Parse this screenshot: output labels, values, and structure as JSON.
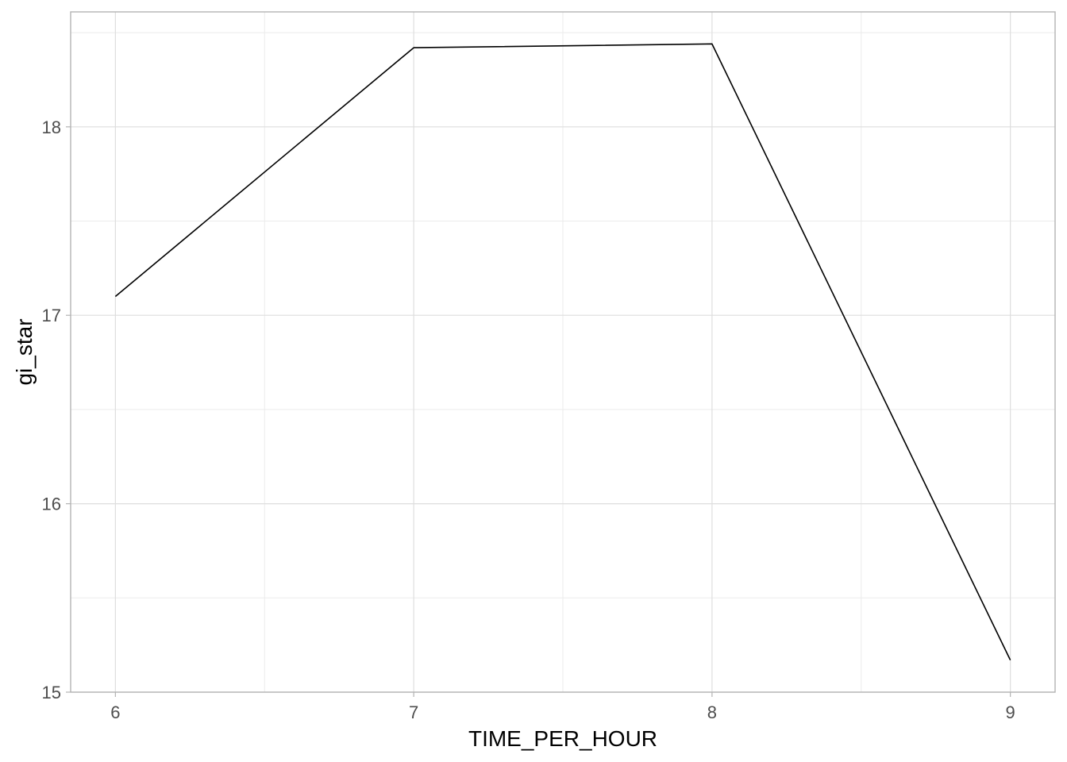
{
  "chart_data": {
    "type": "line",
    "title": "",
    "xlabel": "TIME_PER_HOUR",
    "ylabel": "gi_star",
    "x": [
      6,
      7,
      8,
      9
    ],
    "series": [
      {
        "values": [
          17.1,
          18.42,
          18.44,
          15.17
        ],
        "color": "#000000"
      }
    ],
    "xlim": [
      5.85,
      9.15
    ],
    "ylim": [
      15.0,
      18.61
    ],
    "x_ticks": [
      6,
      7,
      8,
      9
    ],
    "x_tick_labels": [
      "6",
      "7",
      "8",
      "9"
    ],
    "x_minor_ticks": [
      6.5,
      7.5,
      8.5
    ],
    "y_ticks": [
      15,
      16,
      17,
      18
    ],
    "y_tick_labels": [
      "15",
      "16",
      "17",
      "18"
    ],
    "y_minor_ticks": [
      15.5,
      16.5,
      17.5,
      18.5
    ],
    "grid": true,
    "legend": "none"
  }
}
